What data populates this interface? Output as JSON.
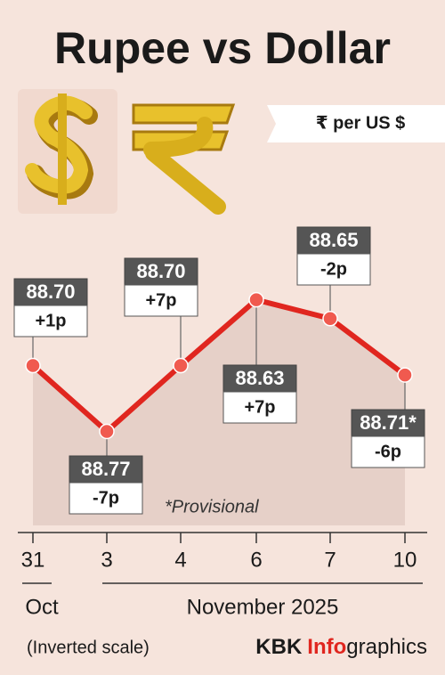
{
  "chart_data": {
    "type": "line",
    "title": "Rupee vs Dollar",
    "unit_label": "₹ per US $",
    "categories": [
      "31",
      "3",
      "4",
      "6",
      "7",
      "10"
    ],
    "month_labels": [
      "Oct",
      "November 2025"
    ],
    "series": [
      {
        "color": "#e0261f",
        "values": [
          88.7,
          88.77,
          88.7,
          88.63,
          88.65,
          88.71
        ],
        "value_labels": [
          "88.70",
          "88.77",
          "88.70",
          "88.63",
          "88.65",
          "88.71*"
        ],
        "change_labels": [
          "+1p",
          "-7p",
          "+7p",
          "+7p",
          "-2p",
          "-6p"
        ]
      }
    ],
    "ylim": [
      88.6,
      88.87
    ],
    "inverted": true,
    "note": "*Provisional",
    "scale_note": "(Inverted scale)",
    "credit": {
      "prefix": "KBK",
      "highlight": "Info",
      "suffix": "graphics"
    }
  }
}
